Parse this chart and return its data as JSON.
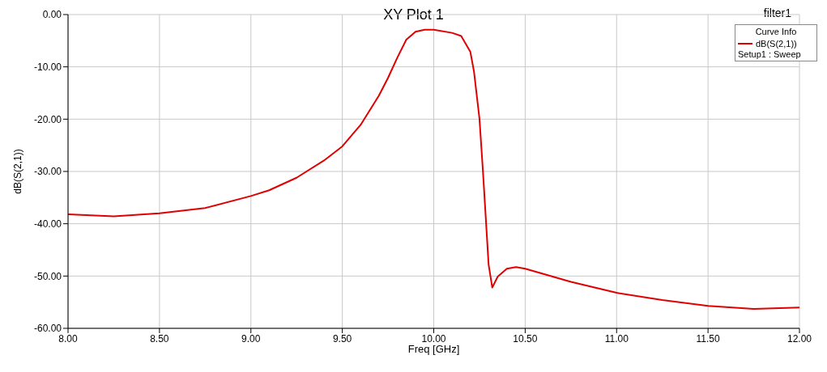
{
  "chart_data": {
    "type": "line",
    "title": "XY Plot 1",
    "xlabel": "Freq [GHz]",
    "ylabel": "dB(S(2,1))",
    "legend_title": "Curve Info",
    "annotations": [
      "filter1",
      "Setup1 : Sweep"
    ],
    "x": [
      8.0,
      8.25,
      8.5,
      8.75,
      9.0,
      9.1,
      9.25,
      9.4,
      9.5,
      9.6,
      9.7,
      9.75,
      9.8,
      9.85,
      9.9,
      9.95,
      10.0,
      10.1,
      10.15,
      10.2,
      10.22,
      10.25,
      10.27,
      10.3,
      10.32,
      10.35,
      10.4,
      10.45,
      10.5,
      10.75,
      11.0,
      11.25,
      11.5,
      11.75,
      12.0
    ],
    "series": [
      {
        "name": "dB(S(2,1))",
        "color": "#e00000",
        "values": [
          -38.2,
          -38.6,
          -38.0,
          -37.0,
          -34.7,
          -33.6,
          -31.2,
          -27.9,
          -25.2,
          -21.1,
          -15.5,
          -12.1,
          -8.3,
          -4.8,
          -3.3,
          -2.9,
          -2.9,
          -3.5,
          -4.1,
          -7.1,
          -10.9,
          -19.9,
          -30.5,
          -47.8,
          -52.2,
          -50.1,
          -48.6,
          -48.3,
          -48.6,
          -51.1,
          -53.2,
          -54.6,
          -55.7,
          -56.3,
          -56.0
        ]
      }
    ],
    "xlim": [
      8,
      12
    ],
    "xticks": [
      {
        "value": 8,
        "label": "8.00"
      },
      {
        "value": 8.5,
        "label": "8.50"
      },
      {
        "value": 9,
        "label": "9.00"
      },
      {
        "value": 9.5,
        "label": "9.50"
      },
      {
        "value": 10,
        "label": "10.00"
      },
      {
        "value": 10.5,
        "label": "10.50"
      },
      {
        "value": 11,
        "label": "11.00"
      },
      {
        "value": 11.5,
        "label": "11.50"
      },
      {
        "value": 12,
        "label": "12.00"
      }
    ],
    "ylim": [
      -60,
      0
    ],
    "yticks": [
      {
        "value": -60,
        "label": "-60.00"
      },
      {
        "value": -50,
        "label": "-50.00"
      },
      {
        "value": -40,
        "label": "-40.00"
      },
      {
        "value": -30,
        "label": "-30.00"
      },
      {
        "value": -20,
        "label": "-20.00"
      },
      {
        "value": -10,
        "label": "-10.00"
      },
      {
        "value": 0,
        "label": "0.00"
      }
    ],
    "grid": true,
    "legend": "top right",
    "marker": "none",
    "line_style": "solid"
  }
}
